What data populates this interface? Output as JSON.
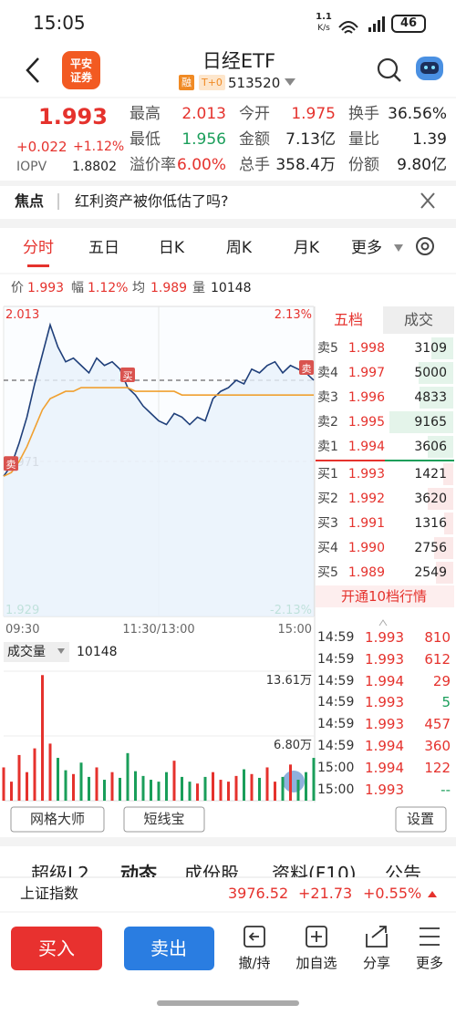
{
  "status_bar": {
    "time": "15:05",
    "speed": "1.1",
    "speed_unit": "K/s",
    "battery": "46"
  },
  "header": {
    "logo": [
      "平安",
      "证券"
    ],
    "title": "日经ETF",
    "tags": [
      "融",
      "T+0"
    ],
    "code": "513520"
  },
  "quote": {
    "price": "1.993",
    "change": "+0.022",
    "change_pct": "+1.12%",
    "iopv_label": "IOPV",
    "iopv": "1.8802",
    "stats": [
      {
        "label": "最高",
        "value": "2.013",
        "color": "#e5322d"
      },
      {
        "label": "今开",
        "value": "1.975",
        "color": "#e5322d"
      },
      {
        "label": "换手",
        "value": "36.56%",
        "color": "#222222"
      },
      {
        "label": "最低",
        "value": "1.956",
        "color": "#1a9e5a"
      },
      {
        "label": "金额",
        "value": "7.13亿",
        "color": "#222222"
      },
      {
        "label": "量比",
        "value": "1.39",
        "color": "#222222"
      },
      {
        "label": "溢价率",
        "value": "6.00%",
        "color": "#e5322d"
      },
      {
        "label": "总手",
        "value": "358.4万",
        "color": "#222222"
      },
      {
        "label": "份额",
        "value": "9.80亿",
        "color": "#222222"
      }
    ]
  },
  "news": {
    "label": "焦点",
    "text": "红利资产被你低估了吗?"
  },
  "tabs": {
    "items": [
      "分时",
      "五日",
      "日K",
      "周K",
      "月K",
      "更多"
    ],
    "active": 0
  },
  "summary": [
    {
      "label": "价",
      "value": "1.993",
      "color": "#e5322d"
    },
    {
      "label": "幅",
      "value": "1.12%",
      "color": "#e5322d"
    },
    {
      "label": "均",
      "value": "1.989",
      "color": "#e5322d"
    },
    {
      "label": "量",
      "value": "10148",
      "color": "#222222"
    }
  ],
  "chart_data": [
    {
      "type": "line",
      "x": [
        0,
        6,
        12,
        18,
        24,
        30,
        36,
        42,
        48,
        54,
        60,
        66,
        72,
        78,
        84,
        90,
        96,
        102,
        108,
        114,
        120,
        126,
        132,
        138,
        144,
        150,
        156,
        162,
        168,
        174,
        180,
        186,
        192,
        198,
        204,
        210,
        216,
        222,
        228,
        234,
        240
      ],
      "xlim": [
        0,
        240
      ],
      "xticks": [
        {
          "value": 0,
          "label": "09:30"
        },
        {
          "value": 120,
          "label": "11:30/13:00"
        },
        {
          "value": 240,
          "label": "15:00"
        }
      ],
      "ylim": [
        1.929,
        2.013
      ],
      "yticks": [
        1.929,
        1.971,
        2.013
      ],
      "y2lim": [
        -2.13,
        2.13
      ],
      "y2ticks": [
        {
          "value": -2.13,
          "label": "-2.13%"
        },
        {
          "value": 2.13,
          "label": "2.13%"
        }
      ],
      "last_price": 1.993,
      "grid": true,
      "series": [
        {
          "color": "#1f3f7a",
          "values": [
            1.967,
            1.97,
            1.976,
            1.983,
            1.992,
            2.0,
            2.008,
            2.002,
            1.998,
            1.999,
            1.997,
            1.995,
            1.999,
            1.997,
            1.998,
            1.996,
            1.991,
            1.989,
            1.986,
            1.984,
            1.982,
            1.981,
            1.984,
            1.983,
            1.981,
            1.983,
            1.982,
            1.988,
            1.99,
            1.991,
            1.993,
            1.992,
            1.996,
            1.995,
            1.997,
            1.998,
            1.995,
            1.997,
            1.996,
            1.995,
            1.993
          ]
        },
        {
          "color": "#f0a030",
          "values": [
            1.967,
            1.968,
            1.971,
            1.975,
            1.98,
            1.985,
            1.988,
            1.989,
            1.99,
            1.99,
            1.991,
            1.991,
            1.991,
            1.991,
            1.991,
            1.991,
            1.991,
            1.99,
            1.99,
            1.99,
            1.99,
            1.99,
            1.99,
            1.989,
            1.989,
            1.989,
            1.989,
            1.989,
            1.989,
            1.989,
            1.989,
            1.989,
            1.989,
            1.989,
            1.989,
            1.989,
            1.989,
            1.989,
            1.989,
            1.989,
            1.989
          ]
        }
      ],
      "markers": [
        {
          "label": "卖",
          "x": 0
        },
        {
          "label": "买",
          "x": 96
        },
        {
          "label": "卖",
          "x": 240
        }
      ]
    },
    {
      "type": "bar",
      "label": "成交量",
      "value": "10148",
      "x": [
        0,
        6,
        12,
        18,
        24,
        30,
        36,
        42,
        48,
        54,
        60,
        66,
        72,
        78,
        84,
        90,
        96,
        102,
        108,
        114,
        120,
        126,
        132,
        138,
        144,
        150,
        156,
        162,
        168,
        174,
        180,
        186,
        192,
        198,
        204,
        210,
        216,
        222,
        228,
        234,
        240
      ],
      "xlim": [
        0,
        240
      ],
      "ylim": [
        0,
        13.61
      ],
      "yticks": [
        {
          "value": 6.8,
          "label": "6.80万"
        },
        {
          "value": 13.61,
          "label": "13.61万"
        }
      ],
      "colors": {
        "up": "#e5322d",
        "down": "#1a9e5a"
      },
      "values": [
        3.5,
        2.0,
        4.8,
        3.0,
        5.5,
        13.2,
        6.0,
        4.5,
        3.2,
        2.8,
        4.0,
        2.5,
        3.5,
        2.2,
        3.0,
        2.4,
        5.0,
        3.1,
        2.6,
        2.2,
        2.0,
        3.0,
        4.2,
        2.5,
        2.0,
        1.8,
        2.5,
        3.0,
        2.2,
        2.0,
        2.6,
        3.3,
        2.8,
        2.4,
        3.5,
        2.0,
        2.5,
        3.8,
        2.2,
        3.0,
        4.5
      ]
    }
  ],
  "order_book": {
    "tabs": [
      "五档",
      "成交"
    ],
    "asks": [
      {
        "label": "卖5",
        "price": "1.998",
        "volume": 3109
      },
      {
        "label": "卖4",
        "price": "1.997",
        "volume": 5000
      },
      {
        "label": "卖3",
        "price": "1.996",
        "volume": 4833
      },
      {
        "label": "卖2",
        "price": "1.995",
        "volume": 9165
      },
      {
        "label": "卖1",
        "price": "1.994",
        "volume": 3606
      }
    ],
    "bids": [
      {
        "label": "买1",
        "price": "1.993",
        "volume": 1421
      },
      {
        "label": "买2",
        "price": "1.992",
        "volume": 3620
      },
      {
        "label": "买3",
        "price": "1.991",
        "volume": 1316
      },
      {
        "label": "买4",
        "price": "1.990",
        "volume": 2756
      },
      {
        "label": "买5",
        "price": "1.989",
        "volume": 2549
      }
    ],
    "upgrade": "开通10档行情"
  },
  "trades": [
    {
      "time": "14:59",
      "price": "1.993",
      "volume": "810",
      "volume_color": "#e5322d"
    },
    {
      "time": "14:59",
      "price": "1.993",
      "volume": "612",
      "volume_color": "#e5322d"
    },
    {
      "time": "14:59",
      "price": "1.994",
      "volume": "29",
      "volume_color": "#e5322d"
    },
    {
      "time": "14:59",
      "price": "1.993",
      "volume": "5",
      "volume_color": "#1a9e5a"
    },
    {
      "time": "14:59",
      "price": "1.993",
      "volume": "457",
      "volume_color": "#e5322d"
    },
    {
      "time": "14:59",
      "price": "1.994",
      "volume": "360",
      "volume_color": "#e5322d"
    },
    {
      "time": "15:00",
      "price": "1.994",
      "volume": "122",
      "volume_color": "#e5322d"
    },
    {
      "time": "15:00",
      "price": "1.993",
      "volume": "--",
      "volume_color": "#1a9e5a"
    }
  ],
  "tools": [
    "网格大师",
    "短线宝",
    "设置"
  ],
  "sections": [
    "超级L2",
    "动态",
    "成份股",
    "资料(F10)",
    "公告"
  ],
  "index": {
    "name": "上证指数",
    "value": "3976.52",
    "change": "+21.73",
    "change_pct": "+0.55%"
  },
  "actions": {
    "buy": "买入",
    "sell": "卖出",
    "items": [
      "撤/持",
      "加自选",
      "分享",
      "更多"
    ]
  }
}
